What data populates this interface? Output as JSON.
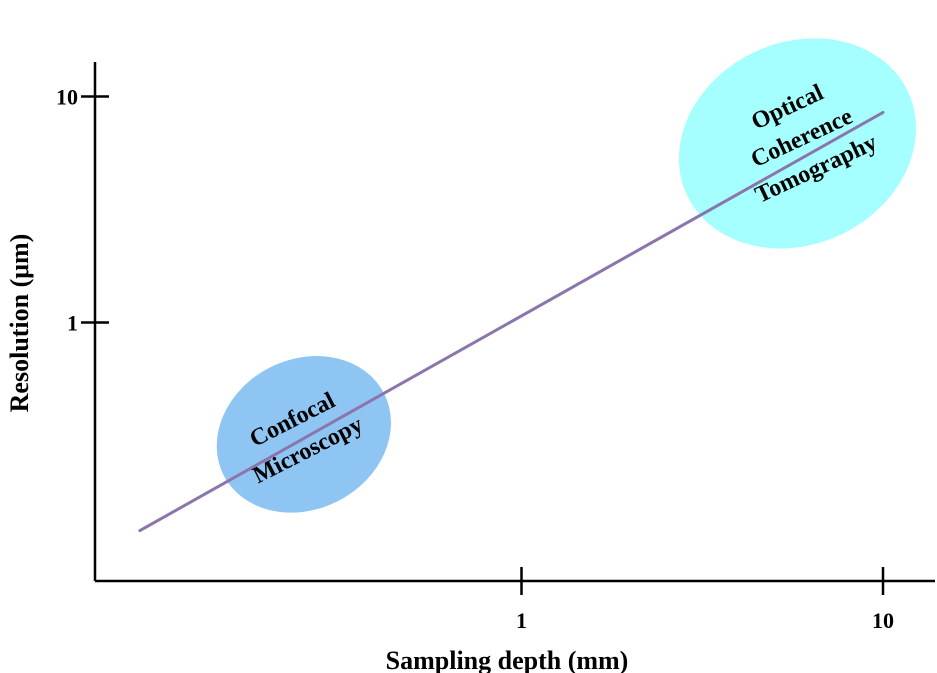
{
  "chart_data": {
    "type": "line",
    "xlabel": "Sampling depth (mm)",
    "ylabel": "Resolution (μm)",
    "x_scale": "log",
    "y_scale": "log",
    "x_ticks": [
      {
        "value": 1,
        "label": "1"
      },
      {
        "value": 10,
        "label": "10"
      }
    ],
    "y_ticks": [
      {
        "value": 1,
        "label": "1"
      },
      {
        "value": 10,
        "label": "10"
      }
    ],
    "series": [
      {
        "color": "#8a76ad",
        "points": [
          {
            "x": 0.088,
            "y": 0.12
          },
          {
            "x": 10,
            "y": 8.5
          }
        ]
      }
    ],
    "annotations": [
      {
        "lines": [
          "Confocal",
          "Microscopy"
        ],
        "fill": "#8fc5f2",
        "anchor": {
          "x": 0.25,
          "y": 0.32
        }
      },
      {
        "lines": [
          "Optical",
          "Coherence",
          "Tomography"
        ],
        "fill": "#a6ffff",
        "anchor": {
          "x": 5.8,
          "y": 6.2
        }
      }
    ],
    "grid": false,
    "legend": "none"
  }
}
